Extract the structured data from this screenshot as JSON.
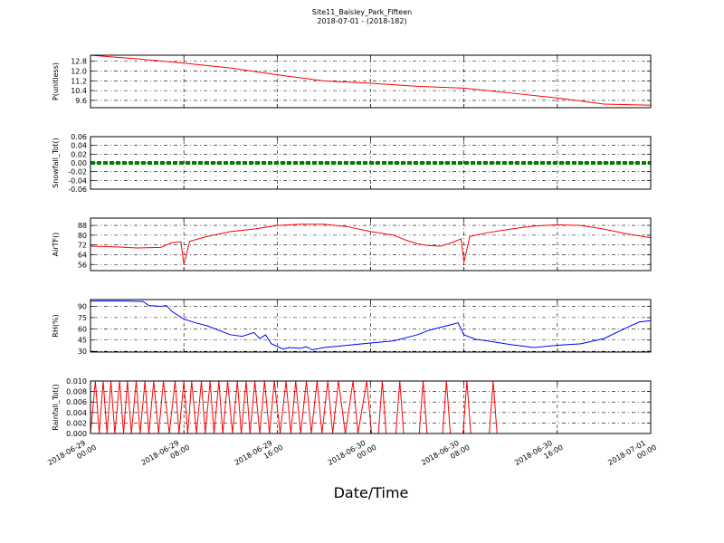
{
  "title": "Site11_Baisley_Park_Fifteen",
  "subtitle": "2018-07-01 - (2018-182)",
  "xlabel": "Date/Time",
  "chart_data": [
    {
      "type": "line",
      "y_label": "P(unitless)",
      "color": "#ff0000",
      "grid": true,
      "ylim": [
        9.0,
        13.3
      ],
      "yticks": [
        9.6,
        10.4,
        11.2,
        {
          "value": 12.0,
          "label": "12.0"
        },
        12.8
      ],
      "x": [
        "2018-06-29 00:00",
        "2018-06-29 04:00",
        "2018-06-29 08:00",
        "2018-06-29 12:00",
        "2018-06-29 16:00",
        "2018-06-29 20:00",
        "2018-06-30 00:00",
        "2018-06-30 04:00",
        "2018-06-30 08:00",
        "2018-06-30 12:00",
        "2018-06-30 16:00",
        "2018-06-30 20:00",
        "2018-07-01 00:00"
      ],
      "values": [
        13.3,
        13.0,
        12.65,
        12.25,
        11.7,
        11.2,
        11.0,
        10.75,
        10.6,
        10.2,
        9.8,
        9.3,
        9.2
      ]
    },
    {
      "type": "line",
      "y_label": "Snowfall_Tot()",
      "color": "#008000",
      "linestyle": "dashed",
      "grid": true,
      "ylim": [
        -0.06,
        0.06
      ],
      "yticks": [
        -0.06,
        -0.04,
        -0.02,
        {
          "value": 0,
          "label": "0.00"
        },
        0.02,
        0.04,
        0.06
      ],
      "x": [
        "2018-06-29 00:00",
        "2018-06-29 04:00",
        "2018-06-29 08:00",
        "2018-06-29 12:00",
        "2018-06-29 16:00",
        "2018-06-29 20:00",
        "2018-06-30 00:00",
        "2018-06-30 04:00",
        "2018-06-30 08:00",
        "2018-06-30 12:00",
        "2018-06-30 16:00",
        "2018-06-30 20:00",
        "2018-07-01 00:00"
      ],
      "values": [
        0,
        0,
        0,
        0,
        0,
        0,
        0,
        0,
        0,
        0,
        0,
        0,
        0
      ]
    },
    {
      "type": "line",
      "y_label": "AirTF()",
      "color": "#ff0000",
      "grid": true,
      "ylim": [
        51,
        94
      ],
      "yticks": [
        56,
        64,
        72,
        80,
        88
      ],
      "x": [
        "2018-06-29 00:00",
        "2018-06-29 02:00",
        "2018-06-29 04:00",
        "2018-06-29 06:00",
        "2018-06-29 07:00",
        "2018-06-29 07:45",
        "2018-06-29 08:00",
        "2018-06-29 08:30",
        "2018-06-29 10:00",
        "2018-06-29 12:00",
        "2018-06-29 14:00",
        "2018-06-29 16:00",
        "2018-06-29 18:00",
        "2018-06-29 20:00",
        "2018-06-29 22:00",
        "2018-06-30 00:00",
        "2018-06-30 02:00",
        "2018-06-30 03:00",
        "2018-06-30 04:00",
        "2018-06-30 05:00",
        "2018-06-30 06:00",
        "2018-06-30 07:00",
        "2018-06-30 07:45",
        "2018-06-30 08:00",
        "2018-06-30 08:30",
        "2018-06-30 10:00",
        "2018-06-30 12:00",
        "2018-06-30 14:00",
        "2018-06-30 16:00",
        "2018-06-30 18:00",
        "2018-06-30 20:00",
        "2018-06-30 22:00",
        "2018-07-01 00:00"
      ],
      "values": [
        71,
        70.5,
        69.5,
        70,
        74,
        74.5,
        56,
        75,
        79,
        83,
        85,
        88,
        89,
        89,
        87,
        83,
        80,
        76,
        73,
        71.5,
        71,
        74,
        77,
        58,
        79,
        82,
        85,
        87.5,
        88.5,
        88,
        85,
        81,
        78
      ]
    },
    {
      "type": "line",
      "y_label": "RH(%)",
      "color": "#0000ff",
      "grid": true,
      "ylim": [
        29,
        99
      ],
      "yticks": [
        30,
        45,
        60,
        75,
        90
      ],
      "x": [
        "2018-06-29 00:00",
        "2018-06-29 03:00",
        "2018-06-29 04:30",
        "2018-06-29 05:00",
        "2018-06-29 06:00",
        "2018-06-29 06:30",
        "2018-06-29 07:00",
        "2018-06-29 08:00",
        "2018-06-29 09:00",
        "2018-06-29 10:00",
        "2018-06-29 12:00",
        "2018-06-29 13:00",
        "2018-06-29 14:00",
        "2018-06-29 14:30",
        "2018-06-29 15:00",
        "2018-06-29 15:30",
        "2018-06-29 16:30",
        "2018-06-29 17:00",
        "2018-06-29 18:00",
        "2018-06-29 18:30",
        "2018-06-29 19:00",
        "2018-06-29 20:00",
        "2018-06-29 22:00",
        "2018-06-30 00:00",
        "2018-06-30 02:00",
        "2018-06-30 04:00",
        "2018-06-30 05:00",
        "2018-06-30 06:00",
        "2018-06-30 07:00",
        "2018-06-30 07:30",
        "2018-06-30 08:00",
        "2018-06-30 09:00",
        "2018-06-30 10:00",
        "2018-06-30 12:00",
        "2018-06-30 14:00",
        "2018-06-30 16:00",
        "2018-06-30 18:00",
        "2018-06-30 20:00",
        "2018-06-30 22:00",
        "2018-06-30 23:00",
        "2018-07-01 00:00"
      ],
      "values": [
        97,
        97,
        96.5,
        91,
        90,
        91,
        83,
        73,
        68,
        64,
        52,
        50,
        55,
        47,
        52,
        40,
        33,
        35,
        34,
        36,
        32,
        35,
        38,
        41,
        44,
        52,
        58,
        62,
        66,
        68,
        52,
        46,
        44,
        39,
        35,
        38,
        40,
        47,
        62,
        69,
        71
      ]
    },
    {
      "type": "line",
      "y_label": "Rainfall_Tot()",
      "color": "#ff0000",
      "grid": true,
      "ylim": [
        0,
        0.01
      ],
      "yticks": [
        {
          "value": 0,
          "label": "0.000"
        },
        0.002,
        0.004,
        0.006,
        0.008,
        {
          "value": 0.01,
          "label": "0.010"
        }
      ],
      "xlim": [
        "2018-06-29 00:00",
        "2018-07-01 00:00"
      ],
      "xticks": [
        "2018-06-29 00:00",
        "2018-06-29 08:00",
        "2018-06-29 16:00",
        "2018-06-30 00:00",
        "2018-06-30 08:00",
        "2018-06-30 16:00",
        "2018-07-01 00:00"
      ],
      "x": [
        "2018-06-29 00:00",
        "2018-06-29 00:25",
        "2018-06-29 00:45",
        "2018-06-29 01:05",
        "2018-06-29 01:25",
        "2018-06-29 01:45",
        "2018-06-29 02:05",
        "2018-06-29 02:30",
        "2018-06-29 02:50",
        "2018-06-29 03:10",
        "2018-06-29 03:30",
        "2018-06-29 03:55",
        "2018-06-29 04:15",
        "2018-06-29 04:40",
        "2018-06-29 05:00",
        "2018-06-29 05:25",
        "2018-06-29 05:50",
        "2018-06-29 06:15",
        "2018-06-29 06:45",
        "2018-06-29 07:15",
        "2018-06-29 07:35",
        "2018-06-29 08:00",
        "2018-06-29 08:20",
        "2018-06-29 08:40",
        "2018-06-29 09:05",
        "2018-06-29 09:30",
        "2018-06-29 09:50",
        "2018-06-29 10:15",
        "2018-06-29 10:35",
        "2018-06-29 11:00",
        "2018-06-29 11:20",
        "2018-06-29 11:45",
        "2018-06-29 12:10",
        "2018-06-29 12:35",
        "2018-06-29 12:55",
        "2018-06-29 13:20",
        "2018-06-29 13:40",
        "2018-06-29 14:05",
        "2018-06-29 14:30",
        "2018-06-29 14:55",
        "2018-06-29 15:20",
        "2018-06-29 15:45",
        "2018-06-29 16:15",
        "2018-06-29 16:45",
        "2018-06-29 17:10",
        "2018-06-29 17:35",
        "2018-06-29 18:00",
        "2018-06-29 18:30",
        "2018-06-29 18:55",
        "2018-06-29 19:25",
        "2018-06-29 19:50",
        "2018-06-29 20:20",
        "2018-06-29 20:45",
        "2018-06-29 21:15",
        "2018-06-29 21:50",
        "2018-06-29 22:30",
        "2018-06-29 22:55",
        "2018-06-29 23:40",
        "2018-06-30 00:05",
        "2018-06-30 00:40",
        "2018-06-30 01:00",
        "2018-06-30 01:20",
        "2018-06-30 02:10",
        "2018-06-30 02:30",
        "2018-06-30 02:50",
        "2018-06-30 04:10",
        "2018-06-30 04:30",
        "2018-06-30 04:50",
        "2018-06-30 06:10",
        "2018-06-30 06:30",
        "2018-06-30 06:50",
        "2018-06-30 07:55",
        "2018-06-30 08:15",
        "2018-06-30 08:35",
        "2018-06-30 10:10",
        "2018-06-30 10:30",
        "2018-06-30 10:50",
        "2018-07-01 00:00"
      ],
      "values": [
        0,
        0.01,
        0,
        0.01,
        0,
        0.01,
        0,
        0.01,
        0,
        0.01,
        0,
        0.01,
        0,
        0.01,
        0,
        0.01,
        0,
        0.01,
        0,
        0.01,
        0,
        0.01,
        0,
        0.01,
        0,
        0.01,
        0,
        0.01,
        0,
        0.01,
        0,
        0.01,
        0,
        0.01,
        0,
        0.01,
        0,
        0.01,
        0,
        0.01,
        0,
        0.01,
        0,
        0.01,
        0,
        0.01,
        0,
        0.01,
        0,
        0.01,
        0,
        0.01,
        0,
        0.01,
        0,
        0.01,
        0,
        0.01,
        0,
        0,
        0.01,
        0,
        0,
        0.01,
        0,
        0,
        0.01,
        0,
        0,
        0.01,
        0,
        0,
        0.01,
        0,
        0,
        0.01,
        0,
        0
      ]
    }
  ]
}
